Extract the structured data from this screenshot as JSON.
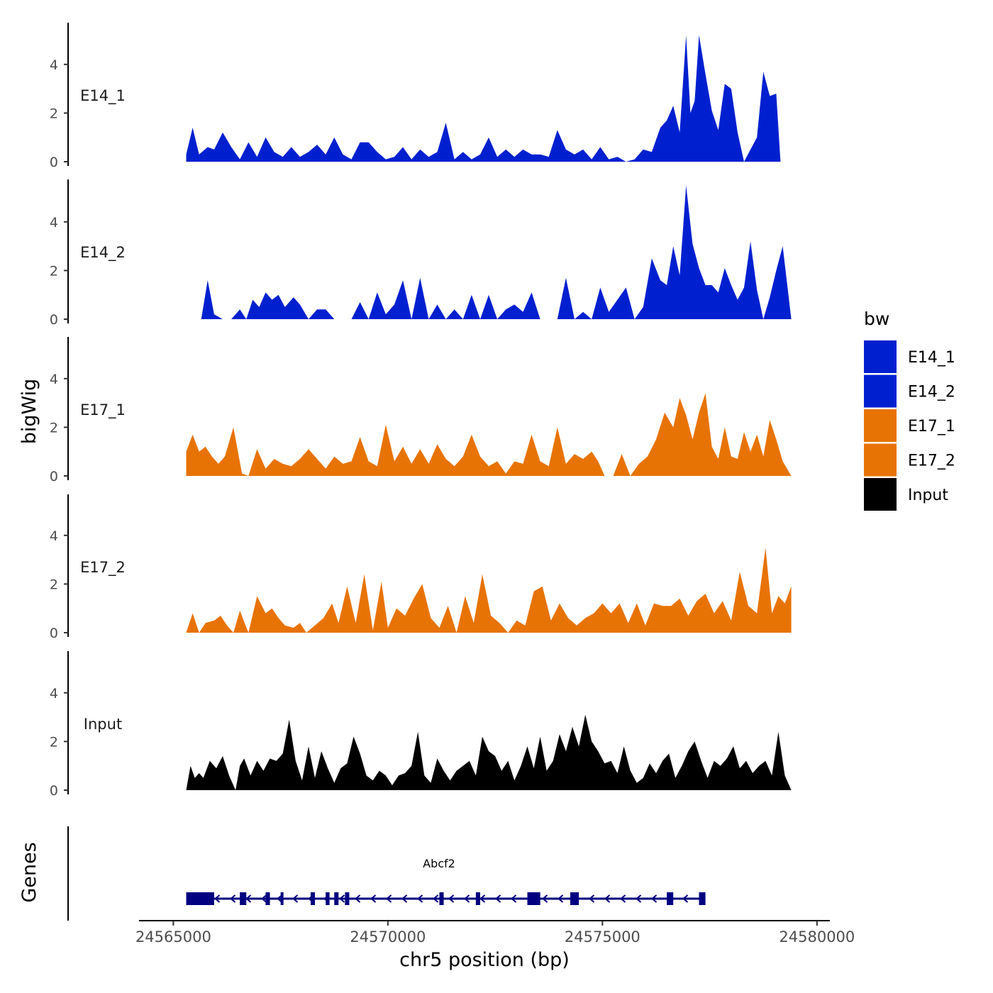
{
  "chart_data": {
    "type": "area",
    "chromosome": "chr5",
    "xlabel": "chr5 position (bp)",
    "ylabel": "bigWig",
    "gene_panel_label": "Genes",
    "xlim": [
      24564200,
      24580300
    ],
    "x_ticks": [
      24565000,
      24570000,
      24575000,
      24580000
    ],
    "x_tick_labels": [
      "24565000",
      "24570000",
      "24575000",
      "24580000"
    ],
    "ylim": [
      0,
      5.8
    ],
    "y_ticks": [
      0,
      2,
      4
    ],
    "y_tick_labels": [
      "0",
      "2",
      "4"
    ],
    "legend": {
      "title": "bw",
      "entries": [
        {
          "label": "E14_1",
          "color": "#0020D0"
        },
        {
          "label": "E14_2",
          "color": "#0020D0"
        },
        {
          "label": "E17_1",
          "color": "#E87305"
        },
        {
          "label": "E17_2",
          "color": "#E87305"
        },
        {
          "label": "Input",
          "color": "#000000"
        }
      ]
    },
    "series": [
      {
        "name": "E14_1",
        "color": "#0020D0",
        "x": [
          24565300,
          24565450,
          24565600,
          24565800,
          24565950,
          24566150,
          24566350,
          24566550,
          24566750,
          24566950,
          24567150,
          24567350,
          24567550,
          24567750,
          24567950,
          24568150,
          24568350,
          24568550,
          24568750,
          24568950,
          24569150,
          24569350,
          24569550,
          24569750,
          24569950,
          24570150,
          24570350,
          24570550,
          24570750,
          24570950,
          24571150,
          24571350,
          24571550,
          24571750,
          24571950,
          24572150,
          24572350,
          24572550,
          24572750,
          24572950,
          24573150,
          24573350,
          24573550,
          24573750,
          24573950,
          24574150,
          24574350,
          24574550,
          24574750,
          24574950,
          24575150,
          24575350,
          24575550,
          24575750,
          24575950,
          24576150,
          24576350,
          24576500,
          24576650,
          24576800,
          24576950,
          24577050,
          24577150,
          24577250,
          24577400,
          24577550,
          24577700,
          24577850,
          24578000,
          24578150,
          24578300,
          24578450,
          24578600,
          24578750,
          24578900,
          24579050,
          24579150,
          24579250,
          24579400
        ],
        "values": [
          0.3,
          1.4,
          0.3,
          0.6,
          0.5,
          1.2,
          0.6,
          0.1,
          0.8,
          0.2,
          1.0,
          0.4,
          0.2,
          0.6,
          0.2,
          0.4,
          0.7,
          0.3,
          1.0,
          0.3,
          0.1,
          0.8,
          0.8,
          0.4,
          0.1,
          0.2,
          0.6,
          0.1,
          0.5,
          0.2,
          0.4,
          1.6,
          0.1,
          0.4,
          0.1,
          0.3,
          1.0,
          0.2,
          0.5,
          0.2,
          0.5,
          0.3,
          0.3,
          0.2,
          1.3,
          0.5,
          0.3,
          0.5,
          0.1,
          0.6,
          0.1,
          0.2,
          0.0,
          0.1,
          0.5,
          0.4,
          1.4,
          1.7,
          2.3,
          1.2,
          5.2,
          2.0,
          2.5,
          5.2,
          3.6,
          2.1,
          1.3,
          3.2,
          3.0,
          1.2,
          0.0,
          0.5,
          1.0,
          3.7,
          2.7,
          2.8,
          0.0,
          0.0,
          0.0
        ]
      },
      {
        "name": "E14_2",
        "color": "#0020D0",
        "x": [
          24565300,
          24565450,
          24565650,
          24565800,
          24565950,
          24566150,
          24566350,
          24566550,
          24566700,
          24566850,
          24567000,
          24567150,
          24567300,
          24567450,
          24567600,
          24567800,
          24567950,
          24568150,
          24568350,
          24568550,
          24568750,
          24568950,
          24569150,
          24569350,
          24569550,
          24569750,
          24569950,
          24570150,
          24570350,
          24570550,
          24570750,
          24570950,
          24571150,
          24571350,
          24571550,
          24571750,
          24571950,
          24572150,
          24572350,
          24572550,
          24572750,
          24572950,
          24573150,
          24573350,
          24573550,
          24573750,
          24573950,
          24574150,
          24574350,
          24574550,
          24574750,
          24574950,
          24575150,
          24575350,
          24575550,
          24575750,
          24575950,
          24576150,
          24576350,
          24576500,
          24576650,
          24576800,
          24576950,
          24577100,
          24577250,
          24577400,
          24577550,
          24577700,
          24577850,
          24578000,
          24578150,
          24578300,
          24578450,
          24578600,
          24578750,
          24578900,
          24579050,
          24579200,
          24579400
        ],
        "values": [
          0.0,
          0.0,
          0.0,
          1.6,
          0.2,
          0.0,
          0.0,
          0.4,
          0.0,
          0.8,
          0.5,
          1.1,
          0.8,
          1.0,
          0.5,
          0.9,
          0.6,
          0.0,
          0.4,
          0.4,
          0.0,
          0.0,
          0.0,
          0.7,
          0.0,
          1.1,
          0.2,
          0.6,
          1.6,
          0.0,
          1.7,
          0.0,
          0.6,
          0.0,
          0.4,
          0.0,
          1.0,
          0.0,
          1.0,
          0.0,
          0.4,
          0.6,
          0.3,
          1.1,
          0.0,
          0.0,
          0.0,
          1.7,
          0.0,
          0.3,
          0.0,
          1.3,
          0.3,
          0.8,
          1.3,
          0.0,
          0.5,
          2.5,
          1.6,
          1.4,
          3.0,
          1.8,
          5.5,
          3.1,
          2.1,
          1.4,
          1.4,
          1.1,
          2.1,
          1.4,
          0.8,
          1.3,
          3.2,
          1.2,
          0.0,
          0.9,
          2.0,
          3.0,
          0.0
        ]
      },
      {
        "name": "E17_1",
        "color": "#E87305",
        "x": [
          24565300,
          24565450,
          24565600,
          24565750,
          24565900,
          24566050,
          24566200,
          24566400,
          24566600,
          24566750,
          24566950,
          24567150,
          24567350,
          24567550,
          24567750,
          24567950,
          24568150,
          24568350,
          24568550,
          24568750,
          24568950,
          24569150,
          24569350,
          24569550,
          24569750,
          24569950,
          24570150,
          24570350,
          24570550,
          24570750,
          24570950,
          24571150,
          24571350,
          24571550,
          24571750,
          24571950,
          24572150,
          24572350,
          24572550,
          24572750,
          24572950,
          24573150,
          24573350,
          24573550,
          24573750,
          24573950,
          24574150,
          24574350,
          24574550,
          24574750,
          24574900,
          24575050,
          24575250,
          24575450,
          24575650,
          24575850,
          24576050,
          24576250,
          24576450,
          24576650,
          24576800,
          24576950,
          24577100,
          24577250,
          24577400,
          24577550,
          24577700,
          24577850,
          24578000,
          24578150,
          24578300,
          24578450,
          24578600,
          24578750,
          24578900,
          24579050,
          24579200,
          24579400
        ],
        "values": [
          1.0,
          1.7,
          1.0,
          1.2,
          0.8,
          0.5,
          0.8,
          2.0,
          0.1,
          0.0,
          1.1,
          0.3,
          0.7,
          0.5,
          0.4,
          0.7,
          1.1,
          0.7,
          0.3,
          0.8,
          0.5,
          0.6,
          1.6,
          0.6,
          0.4,
          2.1,
          0.6,
          1.2,
          0.5,
          1.1,
          0.5,
          1.3,
          0.7,
          0.4,
          0.8,
          1.7,
          0.8,
          0.4,
          0.6,
          0.1,
          0.6,
          0.5,
          1.7,
          0.6,
          0.4,
          2.0,
          0.5,
          0.9,
          0.7,
          1.0,
          0.6,
          0.0,
          0.0,
          0.9,
          0.0,
          0.5,
          0.8,
          1.5,
          2.6,
          2.0,
          3.2,
          2.5,
          1.5,
          2.6,
          3.4,
          1.2,
          0.7,
          2.0,
          0.8,
          0.7,
          1.8,
          1.0,
          1.7,
          0.8,
          2.3,
          1.5,
          0.6,
          0.0
        ]
      },
      {
        "name": "E17_2",
        "color": "#E87305",
        "x": [
          24565300,
          24565450,
          24565600,
          24565750,
          24565950,
          24566100,
          24566250,
          24566400,
          24566550,
          24566750,
          24566950,
          24567150,
          24567300,
          24567450,
          24567600,
          24567800,
          24567950,
          24568100,
          24568300,
          24568500,
          24568700,
          24568850,
          24569050,
          24569250,
          24569450,
          24569650,
          24569850,
          24570000,
          24570200,
          24570400,
          24570600,
          24570800,
          24571000,
          24571200,
          24571400,
          24571600,
          24571800,
          24572000,
          24572200,
          24572400,
          24572600,
          24572800,
          24573000,
          24573200,
          24573400,
          24573600,
          24573800,
          24574000,
          24574200,
          24574400,
          24574600,
          24574800,
          24575000,
          24575200,
          24575400,
          24575600,
          24575800,
          24576000,
          24576200,
          24576400,
          24576600,
          24576800,
          24577000,
          24577200,
          24577400,
          24577600,
          24577800,
          24578000,
          24578200,
          24578400,
          24578600,
          24578800,
          24578950,
          24579100,
          24579250,
          24579400
        ],
        "values": [
          0.0,
          0.8,
          0.0,
          0.4,
          0.5,
          0.7,
          0.3,
          0.0,
          0.9,
          0.0,
          1.5,
          0.8,
          1.0,
          0.6,
          0.3,
          0.2,
          0.4,
          0.0,
          0.3,
          0.6,
          1.2,
          0.4,
          1.9,
          0.4,
          2.4,
          0.1,
          2.1,
          0.2,
          1.0,
          0.7,
          1.4,
          2.0,
          0.6,
          0.2,
          1.1,
          0.0,
          1.5,
          0.4,
          2.4,
          0.7,
          0.4,
          0.0,
          0.5,
          0.3,
          1.7,
          1.9,
          0.5,
          1.2,
          0.6,
          0.3,
          0.6,
          0.8,
          1.2,
          0.8,
          1.2,
          0.4,
          1.2,
          0.3,
          1.2,
          1.1,
          1.1,
          1.4,
          0.7,
          1.3,
          1.6,
          0.8,
          1.3,
          0.5,
          2.5,
          1.1,
          0.8,
          3.5,
          0.8,
          1.5,
          1.2,
          1.9
        ]
      },
      {
        "name": "Input",
        "color": "#000000",
        "x": [
          24565300,
          24565400,
          24565500,
          24565600,
          24565700,
          24565850,
          24566000,
          24566150,
          24566300,
          24566450,
          24566550,
          24566650,
          24566800,
          24566950,
          24567100,
          24567250,
          24567400,
          24567550,
          24567700,
          24567850,
          24568000,
          24568150,
          24568300,
          24568450,
          24568600,
          24568750,
          24568900,
          24569050,
          24569200,
          24569350,
          24569500,
          24569650,
          24569800,
          24569950,
          24570100,
          24570250,
          24570400,
          24570550,
          24570700,
          24570850,
          24571000,
          24571150,
          24571300,
          24571450,
          24571600,
          24571750,
          24571900,
          24572050,
          24572200,
          24572350,
          24572500,
          24572650,
          24572800,
          24572950,
          24573100,
          24573250,
          24573400,
          24573550,
          24573700,
          24573850,
          24574000,
          24574150,
          24574300,
          24574450,
          24574600,
          24574750,
          24574900,
          24575050,
          24575200,
          24575350,
          24575500,
          24575650,
          24575800,
          24575950,
          24576100,
          24576250,
          24576400,
          24576550,
          24576700,
          24576850,
          24577000,
          24577150,
          24577300,
          24577450,
          24577600,
          24577750,
          24577900,
          24578050,
          24578200,
          24578350,
          24578500,
          24578650,
          24578800,
          24578950,
          24579100,
          24579250,
          24579400
        ],
        "values": [
          0.0,
          1.0,
          0.5,
          0.7,
          0.5,
          1.2,
          0.9,
          1.4,
          0.6,
          0.0,
          1.0,
          1.3,
          0.6,
          1.2,
          0.8,
          1.3,
          1.2,
          1.5,
          2.9,
          1.2,
          0.4,
          1.8,
          0.5,
          1.6,
          0.9,
          0.3,
          0.9,
          1.1,
          2.2,
          1.5,
          0.6,
          0.4,
          0.8,
          0.6,
          0.2,
          0.6,
          0.7,
          1.0,
          2.4,
          0.6,
          0.3,
          1.3,
          0.8,
          0.4,
          0.8,
          1.0,
          1.2,
          0.6,
          2.2,
          1.6,
          1.4,
          0.8,
          1.2,
          0.4,
          1.0,
          1.8,
          0.9,
          2.2,
          0.8,
          1.2,
          2.3,
          1.6,
          2.6,
          1.8,
          3.1,
          2.0,
          1.6,
          1.1,
          1.2,
          0.7,
          1.8,
          0.8,
          0.3,
          0.5,
          1.1,
          0.7,
          1.2,
          1.5,
          0.5,
          1.0,
          1.6,
          2.0,
          1.2,
          0.5,
          1.2,
          1.0,
          1.3,
          1.8,
          0.9,
          1.2,
          0.7,
          1.0,
          1.2,
          0.6,
          2.4,
          0.6,
          0.0
        ]
      }
    ],
    "gene": {
      "name": "Abcf2",
      "strand": "-",
      "start": 24565300,
      "end": 24577400,
      "color": "#000080",
      "exons": [
        [
          24565300,
          24565950
        ],
        [
          24566550,
          24566700
        ],
        [
          24567150,
          24567250
        ],
        [
          24567500,
          24567560
        ],
        [
          24568200,
          24568300
        ],
        [
          24568550,
          24568640
        ],
        [
          24568750,
          24568850
        ],
        [
          24569000,
          24569100
        ],
        [
          24571200,
          24571300
        ],
        [
          24572050,
          24572150
        ],
        [
          24573250,
          24573550
        ],
        [
          24574250,
          24574450
        ],
        [
          24576500,
          24576650
        ],
        [
          24577250,
          24577400
        ]
      ]
    }
  }
}
